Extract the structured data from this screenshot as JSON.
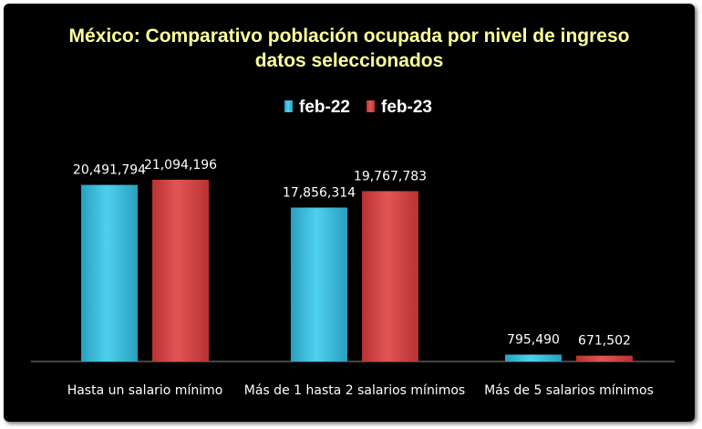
{
  "chart_data": {
    "type": "bar",
    "title": "México: Comparativo población ocupada por nivel de ingreso",
    "subtitle": "datos seleccionados",
    "categories": [
      "Hasta un salario mínimo",
      "Más de 1 hasta 2 salarios mínimos",
      "Más de 5 salarios mínimos"
    ],
    "series": [
      {
        "name": "feb-22",
        "color": "#3fc4e4",
        "values": [
          20491794,
          17856314,
          795490
        ],
        "labels": [
          "20,491,794",
          "17,856,314",
          "795,490"
        ]
      },
      {
        "name": "feb-23",
        "color": "#d94545",
        "values": [
          21094196,
          19767783,
          671502
        ],
        "labels": [
          "21,094,196",
          "19,767,783",
          "671,502"
        ]
      }
    ],
    "ylim": [
      0,
      25000000
    ],
    "grid": false,
    "legend_position": "top-center"
  }
}
